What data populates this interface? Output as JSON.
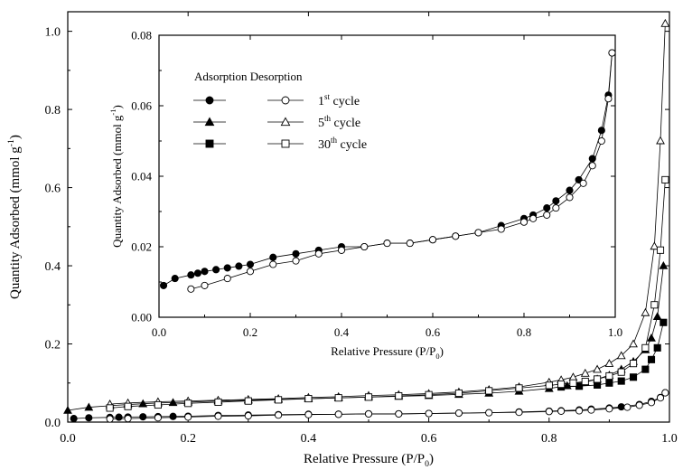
{
  "chart_data": [
    {
      "type": "scatter",
      "panel": "main",
      "xlabel": "Relative Pressure (P/P",
      "xlabel_sub": "0",
      "xlabel_end": ")",
      "ylabel": "Quantity Adsorbed (mmol g",
      "ylabel_sup": "-1",
      "ylabel_end": ")",
      "xlim": [
        0.0,
        1.0
      ],
      "ylim": [
        0.0,
        1.05
      ],
      "x_ticks": [
        "0.0",
        "0.2",
        "0.4",
        "0.6",
        "0.8",
        "1.0"
      ],
      "y_ticks": [
        "0.0",
        "0.2",
        "0.4",
        "0.6",
        "0.8",
        "1.0"
      ],
      "series": [
        {
          "name": "1st cycle adsorption",
          "marker": "circle",
          "filled": true,
          "x": [
            0.01,
            0.035,
            0.07,
            0.085,
            0.1,
            0.125,
            0.15,
            0.175,
            0.2,
            0.25,
            0.3,
            0.35,
            0.4,
            0.45,
            0.5,
            0.55,
            0.6,
            0.65,
            0.7,
            0.75,
            0.8,
            0.82,
            0.85,
            0.87,
            0.9,
            0.92,
            0.95,
            0.97,
            0.985,
            0.993
          ],
          "y": [
            0.009,
            0.011,
            0.012,
            0.0125,
            0.013,
            0.0135,
            0.014,
            0.0145,
            0.015,
            0.017,
            0.018,
            0.019,
            0.02,
            0.02,
            0.021,
            0.021,
            0.022,
            0.023,
            0.024,
            0.026,
            0.028,
            0.029,
            0.031,
            0.033,
            0.036,
            0.039,
            0.045,
            0.053,
            0.063,
            0.075
          ]
        },
        {
          "name": "1st cycle desorption",
          "marker": "circle",
          "filled": false,
          "x": [
            0.993,
            0.985,
            0.97,
            0.95,
            0.93,
            0.9,
            0.87,
            0.85,
            0.82,
            0.8,
            0.75,
            0.7,
            0.65,
            0.6,
            0.55,
            0.5,
            0.45,
            0.4,
            0.35,
            0.3,
            0.25,
            0.2,
            0.15,
            0.1,
            0.07
          ],
          "y": [
            0.075,
            0.062,
            0.05,
            0.043,
            0.038,
            0.034,
            0.031,
            0.029,
            0.028,
            0.027,
            0.025,
            0.024,
            0.023,
            0.022,
            0.021,
            0.021,
            0.02,
            0.019,
            0.018,
            0.016,
            0.015,
            0.013,
            0.011,
            0.009,
            0.008
          ]
        },
        {
          "name": "5th cycle adsorption",
          "marker": "triangle",
          "filled": true,
          "x": [
            0.0,
            0.035,
            0.07,
            0.1,
            0.125,
            0.15,
            0.175,
            0.2,
            0.25,
            0.3,
            0.35,
            0.4,
            0.45,
            0.5,
            0.55,
            0.6,
            0.65,
            0.7,
            0.75,
            0.8,
            0.83,
            0.86,
            0.88,
            0.9,
            0.92,
            0.94,
            0.96,
            0.97,
            0.98,
            0.99
          ],
          "y": [
            0.03,
            0.038,
            0.042,
            0.045,
            0.047,
            0.049,
            0.05,
            0.051,
            0.054,
            0.056,
            0.058,
            0.06,
            0.062,
            0.064,
            0.066,
            0.068,
            0.071,
            0.074,
            0.079,
            0.086,
            0.093,
            0.102,
            0.11,
            0.12,
            0.135,
            0.155,
            0.185,
            0.215,
            0.27,
            0.4
          ]
        },
        {
          "name": "5th cycle desorption",
          "marker": "triangle",
          "filled": false,
          "x": [
            0.993,
            0.985,
            0.975,
            0.96,
            0.94,
            0.92,
            0.9,
            0.88,
            0.86,
            0.84,
            0.82,
            0.8,
            0.75,
            0.7,
            0.65,
            0.6,
            0.55,
            0.5,
            0.45,
            0.4,
            0.35,
            0.3,
            0.25,
            0.2,
            0.15,
            0.1,
            0.07
          ],
          "y": [
            1.02,
            0.72,
            0.45,
            0.28,
            0.2,
            0.17,
            0.15,
            0.135,
            0.125,
            0.115,
            0.108,
            0.102,
            0.09,
            0.083,
            0.077,
            0.073,
            0.07,
            0.068,
            0.065,
            0.063,
            0.06,
            0.058,
            0.056,
            0.054,
            0.052,
            0.049,
            0.046
          ]
        },
        {
          "name": "30th cycle adsorption",
          "marker": "square",
          "filled": true,
          "x": [
            0.82,
            0.85,
            0.88,
            0.9,
            0.92,
            0.94,
            0.96,
            0.97,
            0.98,
            0.99
          ],
          "y": [
            0.09,
            0.092,
            0.095,
            0.1,
            0.105,
            0.115,
            0.135,
            0.16,
            0.19,
            0.255
          ]
        },
        {
          "name": "30th cycle desorption",
          "marker": "square",
          "filled": false,
          "x": [
            0.993,
            0.985,
            0.975,
            0.96,
            0.94,
            0.92,
            0.9,
            0.88,
            0.86,
            0.84,
            0.82,
            0.8,
            0.75,
            0.7,
            0.65,
            0.6,
            0.55,
            0.5,
            0.45,
            0.4,
            0.35,
            0.3,
            0.25,
            0.2,
            0.15,
            0.1,
            0.07
          ],
          "y": [
            0.62,
            0.44,
            0.3,
            0.19,
            0.15,
            0.128,
            0.118,
            0.11,
            0.104,
            0.1,
            0.097,
            0.094,
            0.087,
            0.08,
            0.074,
            0.07,
            0.067,
            0.064,
            0.062,
            0.06,
            0.057,
            0.054,
            0.051,
            0.048,
            0.044,
            0.04,
            0.036
          ]
        }
      ]
    },
    {
      "type": "scatter",
      "panel": "inset",
      "xlabel": "Relative Pressure (P/P",
      "xlabel_sub": "0",
      "xlabel_end": ")",
      "ylabel": "Quantity Adsorbed (mmol g",
      "ylabel_sup": "-1",
      "ylabel_end": ")",
      "xlim": [
        0.0,
        1.0
      ],
      "ylim": [
        0.0,
        0.08
      ],
      "x_ticks": [
        "0.0",
        "0.2",
        "0.4",
        "0.6",
        "0.8",
        "1.0"
      ],
      "y_ticks": [
        "0.00",
        "0.02",
        "0.04",
        "0.06",
        "0.08"
      ],
      "legend": {
        "position": "top-left",
        "header": "Adsorption Desorption",
        "rows": [
          {
            "num": "1",
            "sup": "st",
            "text": " cycle",
            "marker": "circle"
          },
          {
            "num": "5",
            "sup": "th",
            "text": " cycle",
            "marker": "triangle"
          },
          {
            "num": "30",
            "sup": "th",
            "text": " cycle",
            "marker": "square"
          }
        ]
      },
      "series": [
        {
          "name": "1st cycle adsorption",
          "marker": "circle",
          "filled": true,
          "x": [
            0.01,
            0.035,
            0.07,
            0.085,
            0.1,
            0.125,
            0.15,
            0.175,
            0.2,
            0.25,
            0.3,
            0.35,
            0.4,
            0.45,
            0.5,
            0.55,
            0.6,
            0.65,
            0.7,
            0.75,
            0.8,
            0.82,
            0.85,
            0.87,
            0.9,
            0.92,
            0.95,
            0.97,
            0.985,
            0.993
          ],
          "y": [
            0.009,
            0.011,
            0.012,
            0.0125,
            0.013,
            0.0135,
            0.014,
            0.0145,
            0.015,
            0.017,
            0.018,
            0.019,
            0.02,
            0.02,
            0.021,
            0.021,
            0.022,
            0.023,
            0.024,
            0.026,
            0.028,
            0.029,
            0.031,
            0.033,
            0.036,
            0.039,
            0.045,
            0.053,
            0.063,
            0.075
          ]
        },
        {
          "name": "1st cycle desorption",
          "marker": "circle",
          "filled": false,
          "x": [
            0.993,
            0.985,
            0.97,
            0.95,
            0.93,
            0.9,
            0.87,
            0.85,
            0.82,
            0.8,
            0.75,
            0.7,
            0.65,
            0.6,
            0.55,
            0.5,
            0.45,
            0.4,
            0.35,
            0.3,
            0.25,
            0.2,
            0.15,
            0.1,
            0.07
          ],
          "y": [
            0.075,
            0.062,
            0.05,
            0.043,
            0.038,
            0.034,
            0.031,
            0.029,
            0.028,
            0.027,
            0.025,
            0.024,
            0.023,
            0.022,
            0.021,
            0.021,
            0.02,
            0.019,
            0.018,
            0.016,
            0.015,
            0.013,
            0.011,
            0.009,
            0.008
          ]
        }
      ]
    }
  ]
}
